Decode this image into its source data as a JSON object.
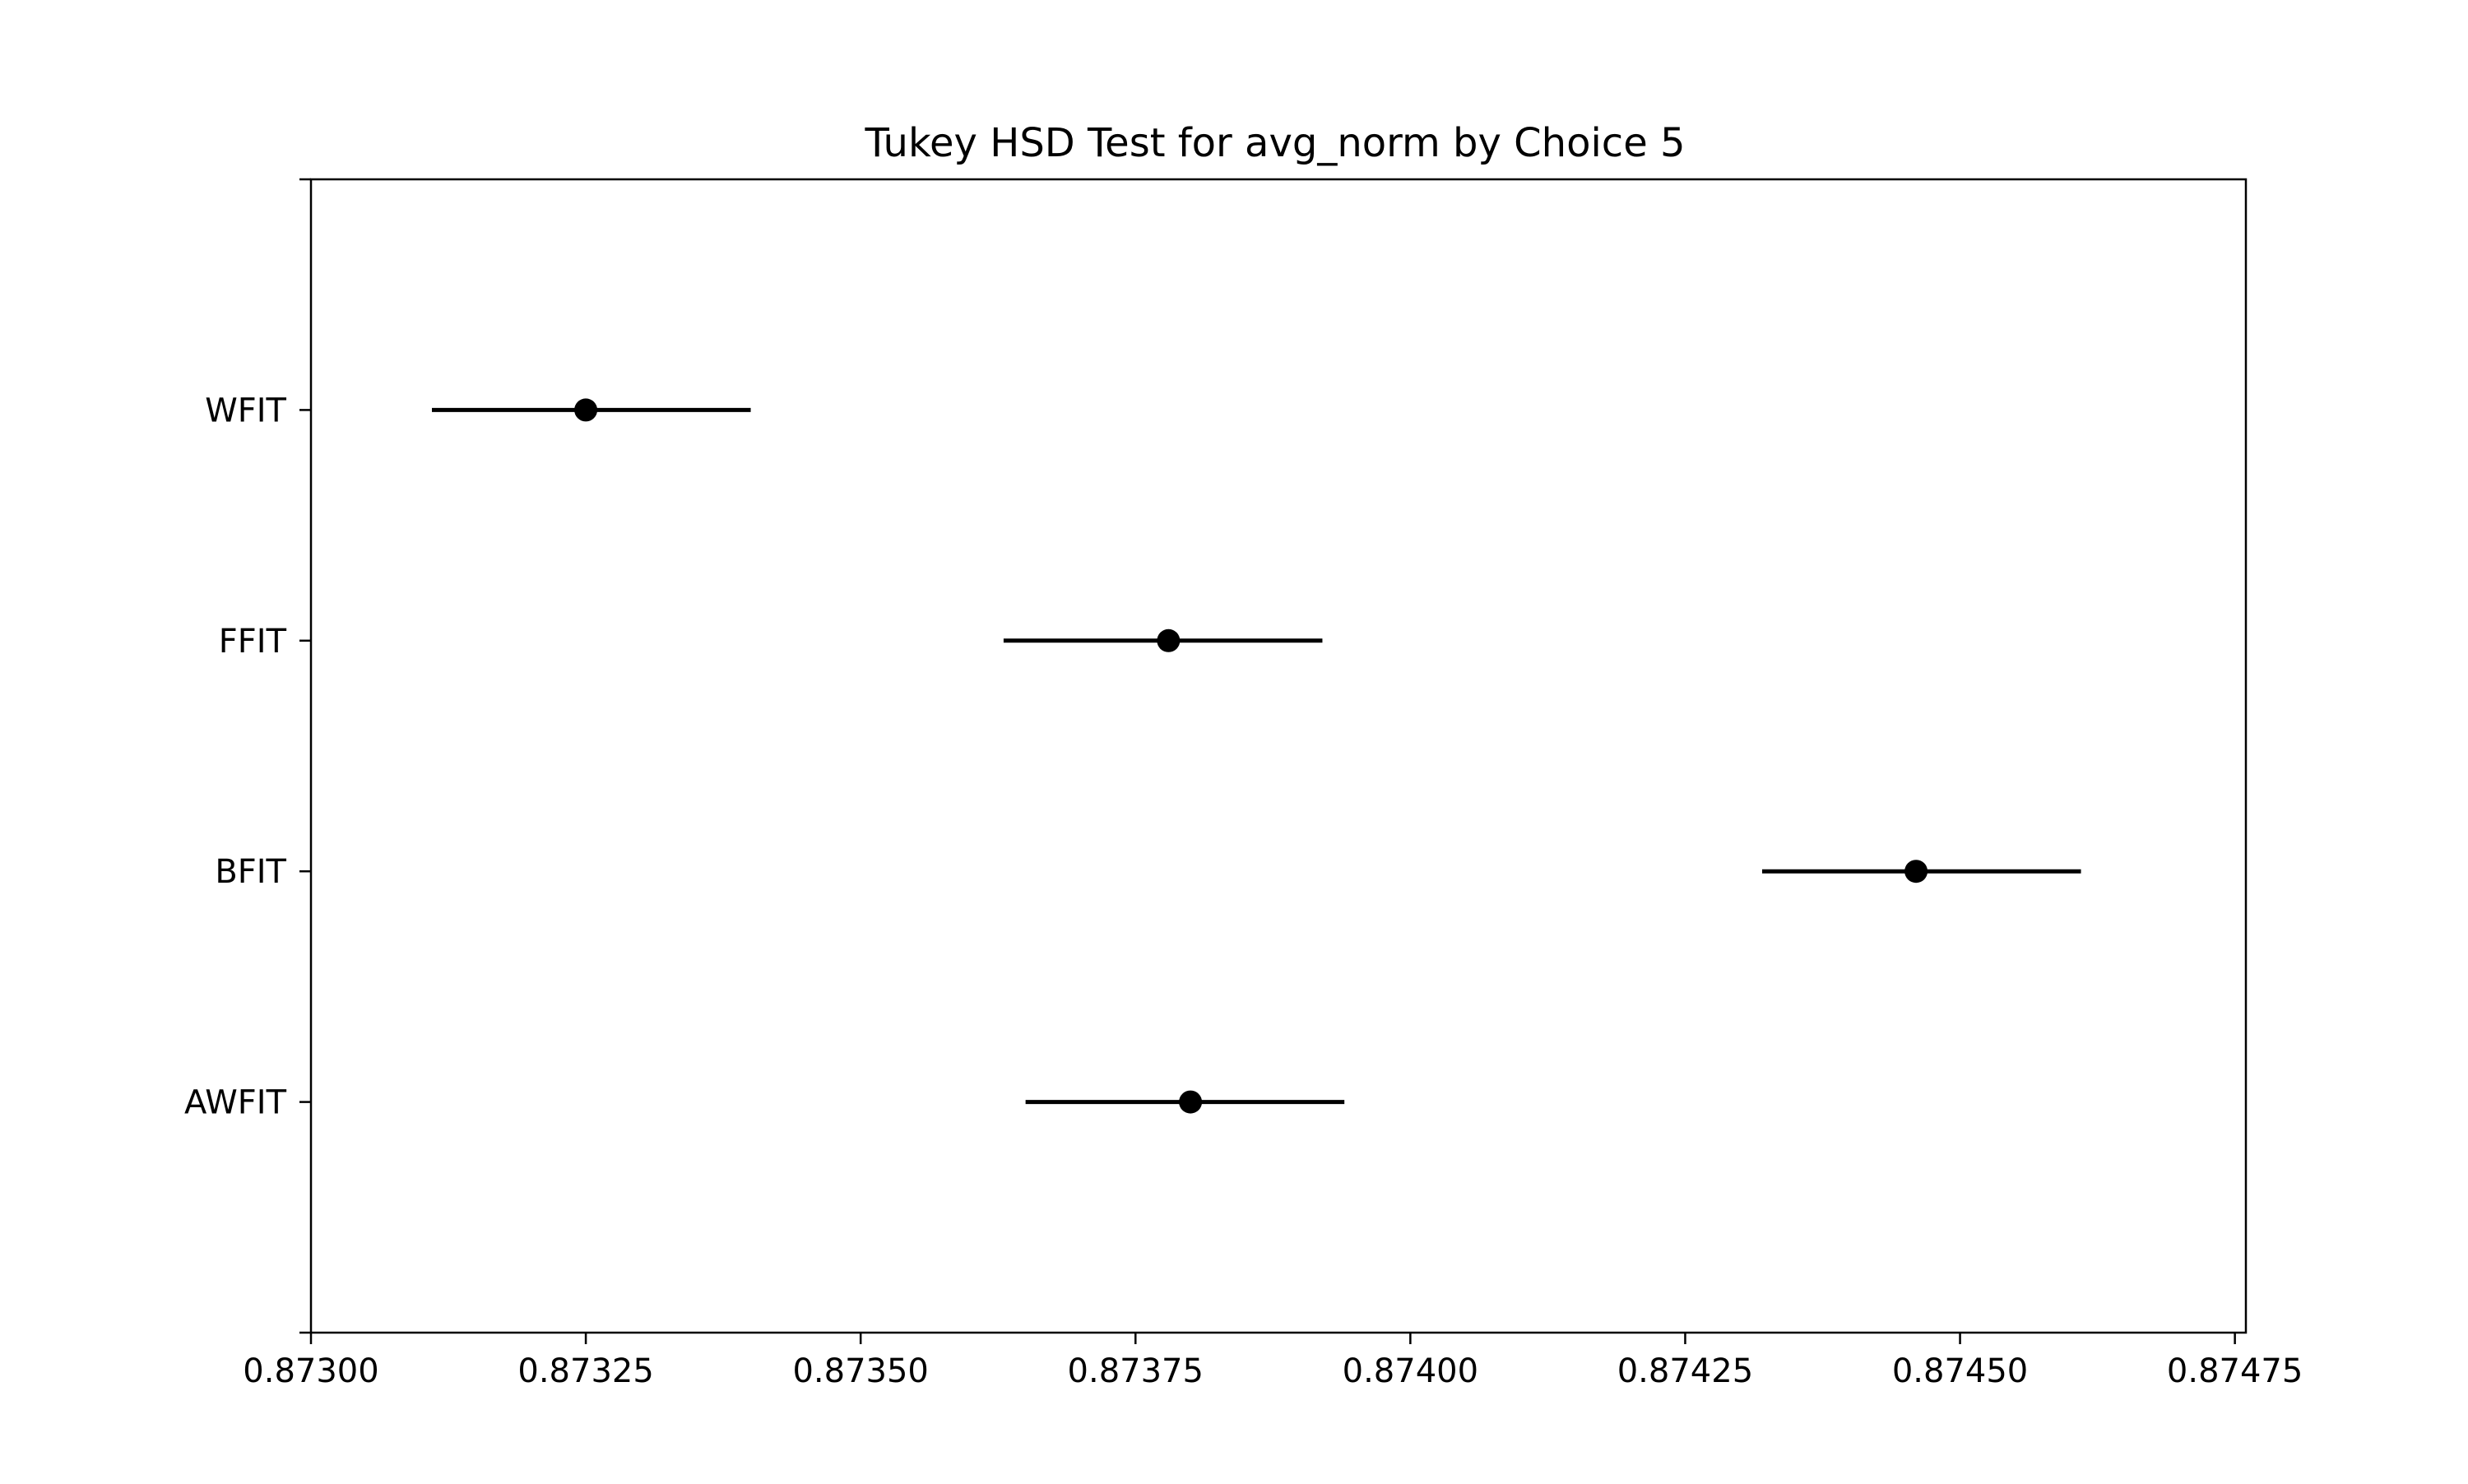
{
  "chart_data": {
    "type": "errorbar",
    "title": "Tukey HSD Test for avg_norm by Choice 5",
    "xlabel": "",
    "ylabel": "",
    "xlim": [
      0.873,
      0.87476
    ],
    "x_ticks": [
      0.873,
      0.87325,
      0.8735,
      0.87375,
      0.874,
      0.87425,
      0.8745,
      0.87475
    ],
    "x_tick_labels": [
      "0.87300",
      "0.87325",
      "0.87350",
      "0.87375",
      "0.87400",
      "0.87425",
      "0.87450",
      "0.87475"
    ],
    "categories": [
      "WFIT",
      "FFIT",
      "BFIT",
      "AWFIT"
    ],
    "series": [
      {
        "points": [
          {
            "group": "WFIT",
            "mean": 0.87325,
            "lower": 0.87311,
            "upper": 0.8734
          },
          {
            "group": "FFIT",
            "mean": 0.87378,
            "lower": 0.87363,
            "upper": 0.87392
          },
          {
            "group": "BFIT",
            "mean": 0.87446,
            "lower": 0.87432,
            "upper": 0.87461
          },
          {
            "group": "AWFIT",
            "mean": 0.8738,
            "lower": 0.87365,
            "upper": 0.87394
          }
        ]
      }
    ],
    "grid": false,
    "colors": {
      "marker": "#000000",
      "line": "#000000",
      "axes": "#000000",
      "background": "#ffffff"
    }
  }
}
